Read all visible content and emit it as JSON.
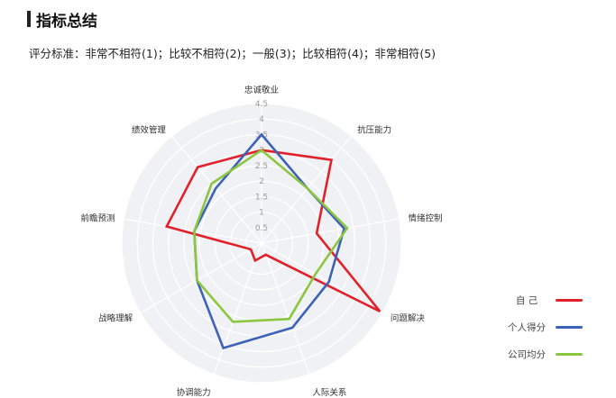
{
  "header": {
    "title": "指标总结"
  },
  "scale_text": "评分标准：非常不相符(1)；比较不相符(2)；一般(3)；比较相符(4)；非常相符(5)",
  "chart_data": {
    "type": "radar",
    "title": "指标总结",
    "indicators": [
      "忠诚敬业",
      "抗压能力",
      "情绪控制",
      "问题解决",
      "人际关系",
      "协调能力",
      "战略理解",
      "前瞻预测",
      "绩效管理"
    ],
    "rlim": [
      0,
      4.5
    ],
    "ticks": [
      "0.5",
      "1",
      "1.5",
      "2",
      "2.5",
      "3",
      "3.5",
      "4",
      "4.5"
    ],
    "series": [
      {
        "name": "自 己",
        "color": "#e2202a",
        "values": [
          3.0,
          3.5,
          1.8,
          4.4,
          0.4,
          0.6,
          0.4,
          3.1,
          3.2
        ]
      },
      {
        "name": "个人得分",
        "color": "#3c62b8",
        "values": [
          3.5,
          2.3,
          2.7,
          2.5,
          2.9,
          3.6,
          2.4,
          2.2,
          2.3
        ]
      },
      {
        "name": "公司均分",
        "color": "#8cc63f",
        "values": [
          3.0,
          2.3,
          2.8,
          2.0,
          2.6,
          2.7,
          2.4,
          2.2,
          2.5
        ]
      }
    ],
    "legend_position": "right"
  }
}
